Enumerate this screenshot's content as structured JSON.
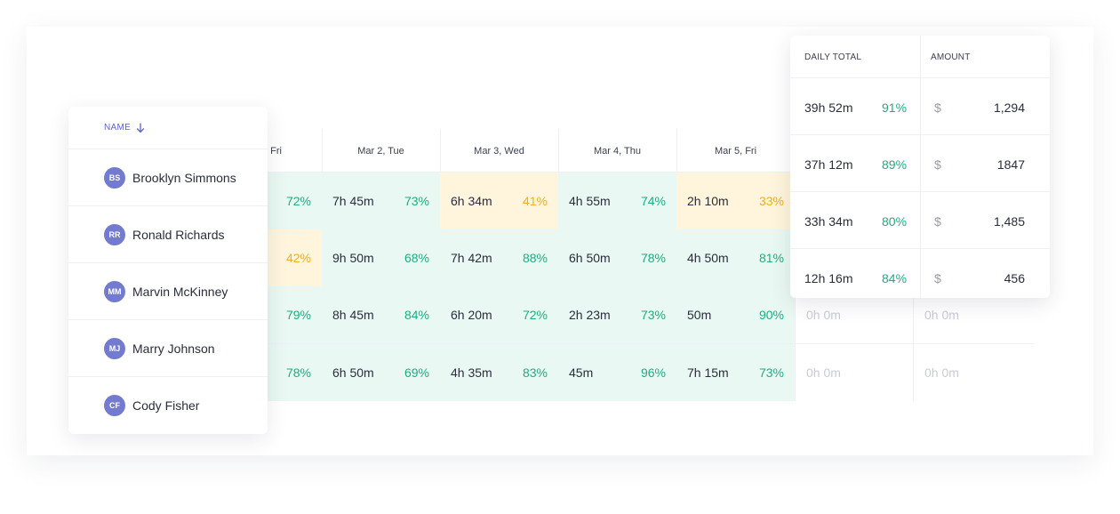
{
  "columns": [
    "Fri",
    "Mar 2, Tue",
    "Mar 3, Wed",
    "Mar 4, Thu",
    "Mar 5, Fri"
  ],
  "name_header": "NAME",
  "rows": [
    {
      "name": "Brooklyn Simmons",
      "initials": "BS",
      "cells": [
        {
          "time": "",
          "pct": "72%",
          "status": "good"
        },
        {
          "time": "7h 45m",
          "pct": "73%",
          "status": "good"
        },
        {
          "time": "6h 34m",
          "pct": "41%",
          "status": "warn"
        },
        {
          "time": "4h 55m",
          "pct": "74%",
          "status": "good"
        },
        {
          "time": "2h 10m",
          "pct": "33%",
          "status": "warn"
        }
      ],
      "extra": []
    },
    {
      "name": "Ronald Richards",
      "initials": "RR",
      "cells": [
        {
          "time": "",
          "pct": "42%",
          "status": "warn"
        },
        {
          "time": "9h 50m",
          "pct": "68%",
          "status": "good"
        },
        {
          "time": "7h 42m",
          "pct": "88%",
          "status": "good"
        },
        {
          "time": "6h 50m",
          "pct": "78%",
          "status": "good"
        },
        {
          "time": "4h 50m",
          "pct": "81%",
          "status": "good"
        }
      ],
      "extra": []
    },
    {
      "name": "Marvin McKinney",
      "initials": "MM",
      "cells": [
        {
          "time": "",
          "pct": "79%",
          "status": "good"
        },
        {
          "time": "8h 45m",
          "pct": "84%",
          "status": "good"
        },
        {
          "time": "6h 20m",
          "pct": "72%",
          "status": "good"
        },
        {
          "time": "2h 23m",
          "pct": "73%",
          "status": "good"
        },
        {
          "time": "50m",
          "pct": "90%",
          "status": "good"
        }
      ],
      "extra": [
        "0h 0m",
        "0h 0m"
      ]
    },
    {
      "name": "Marry Johnson",
      "initials": "MJ",
      "cells": [
        {
          "time": "",
          "pct": "78%",
          "status": "good"
        },
        {
          "time": "6h 50m",
          "pct": "69%",
          "status": "good"
        },
        {
          "time": "4h 35m",
          "pct": "83%",
          "status": "good"
        },
        {
          "time": "45m",
          "pct": "96%",
          "status": "good"
        },
        {
          "time": "7h 15m",
          "pct": "73%",
          "status": "good"
        }
      ],
      "extra": [
        "0h 0m",
        "0h 0m"
      ]
    }
  ],
  "last_person": {
    "name": "Cody Fisher",
    "initials": "CF"
  },
  "totals": {
    "daily_total_header": "DAILY TOTAL",
    "amount_header": "AMOUNT",
    "currency": "$",
    "rows": [
      {
        "time": "39h 52m",
        "pct": "91%",
        "amount": "1,294"
      },
      {
        "time": "37h 12m",
        "pct": "89%",
        "amount": "1847"
      },
      {
        "time": "33h 34m",
        "pct": "80%",
        "amount": "1,485"
      },
      {
        "time": "12h 16m",
        "pct": "84%",
        "amount": "456"
      }
    ]
  },
  "colors": {
    "accent": "#5b63d3",
    "good": "#1fae7d",
    "warn": "#f3ad21",
    "good_bg": "#e9f8f2",
    "warn_bg": "#fff5dc",
    "avatar": "#737bd0"
  }
}
